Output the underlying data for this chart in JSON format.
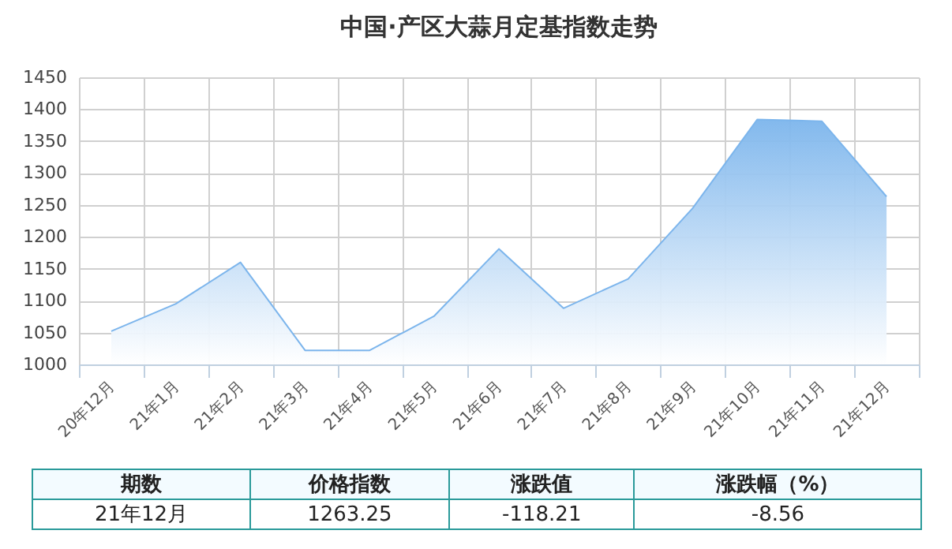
{
  "chart_data": {
    "type": "area",
    "title": "中国·产区大蒜月定基指数走势",
    "categories": [
      "20年12月",
      "21年1月",
      "21年2月",
      "21年3月",
      "21年4月",
      "21年5月",
      "21年6月",
      "21年7月",
      "21年8月",
      "21年9月",
      "21年10月",
      "21年11月",
      "21年12月"
    ],
    "series": [
      {
        "color": "#7cb5ec",
        "values": [
          1052,
          1095,
          1160,
          1022,
          1022,
          1076,
          1181,
          1088,
          1134,
          1245,
          1384,
          1381,
          1263
        ]
      }
    ],
    "ylim": [
      1000,
      1450
    ],
    "yticks": [
      1000,
      1050,
      1100,
      1150,
      1200,
      1250,
      1300,
      1350,
      1400,
      1450
    ],
    "grid": true,
    "marker": "none",
    "annotations": [
      "期数",
      "价格指数",
      "涨跌值",
      "涨跌幅（%）",
      "21年12月",
      "1263.25",
      "-118.21",
      "-8.56"
    ]
  }
}
